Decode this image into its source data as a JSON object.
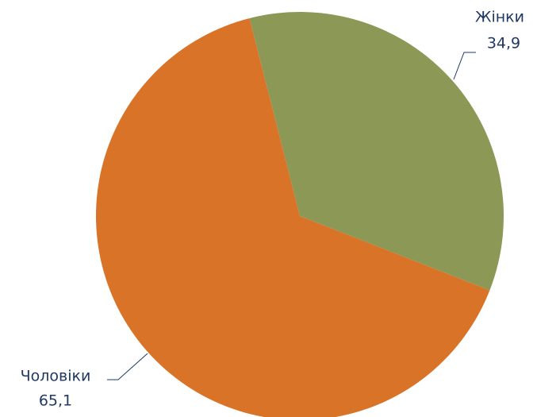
{
  "chart_data": {
    "type": "pie",
    "categories": [
      "Жінки",
      "Чоловіки"
    ],
    "values": [
      34.9,
      65.1
    ],
    "value_labels": [
      "34,9",
      "65,1"
    ],
    "colors": [
      "#8c9855",
      "#d87328"
    ]
  }
}
